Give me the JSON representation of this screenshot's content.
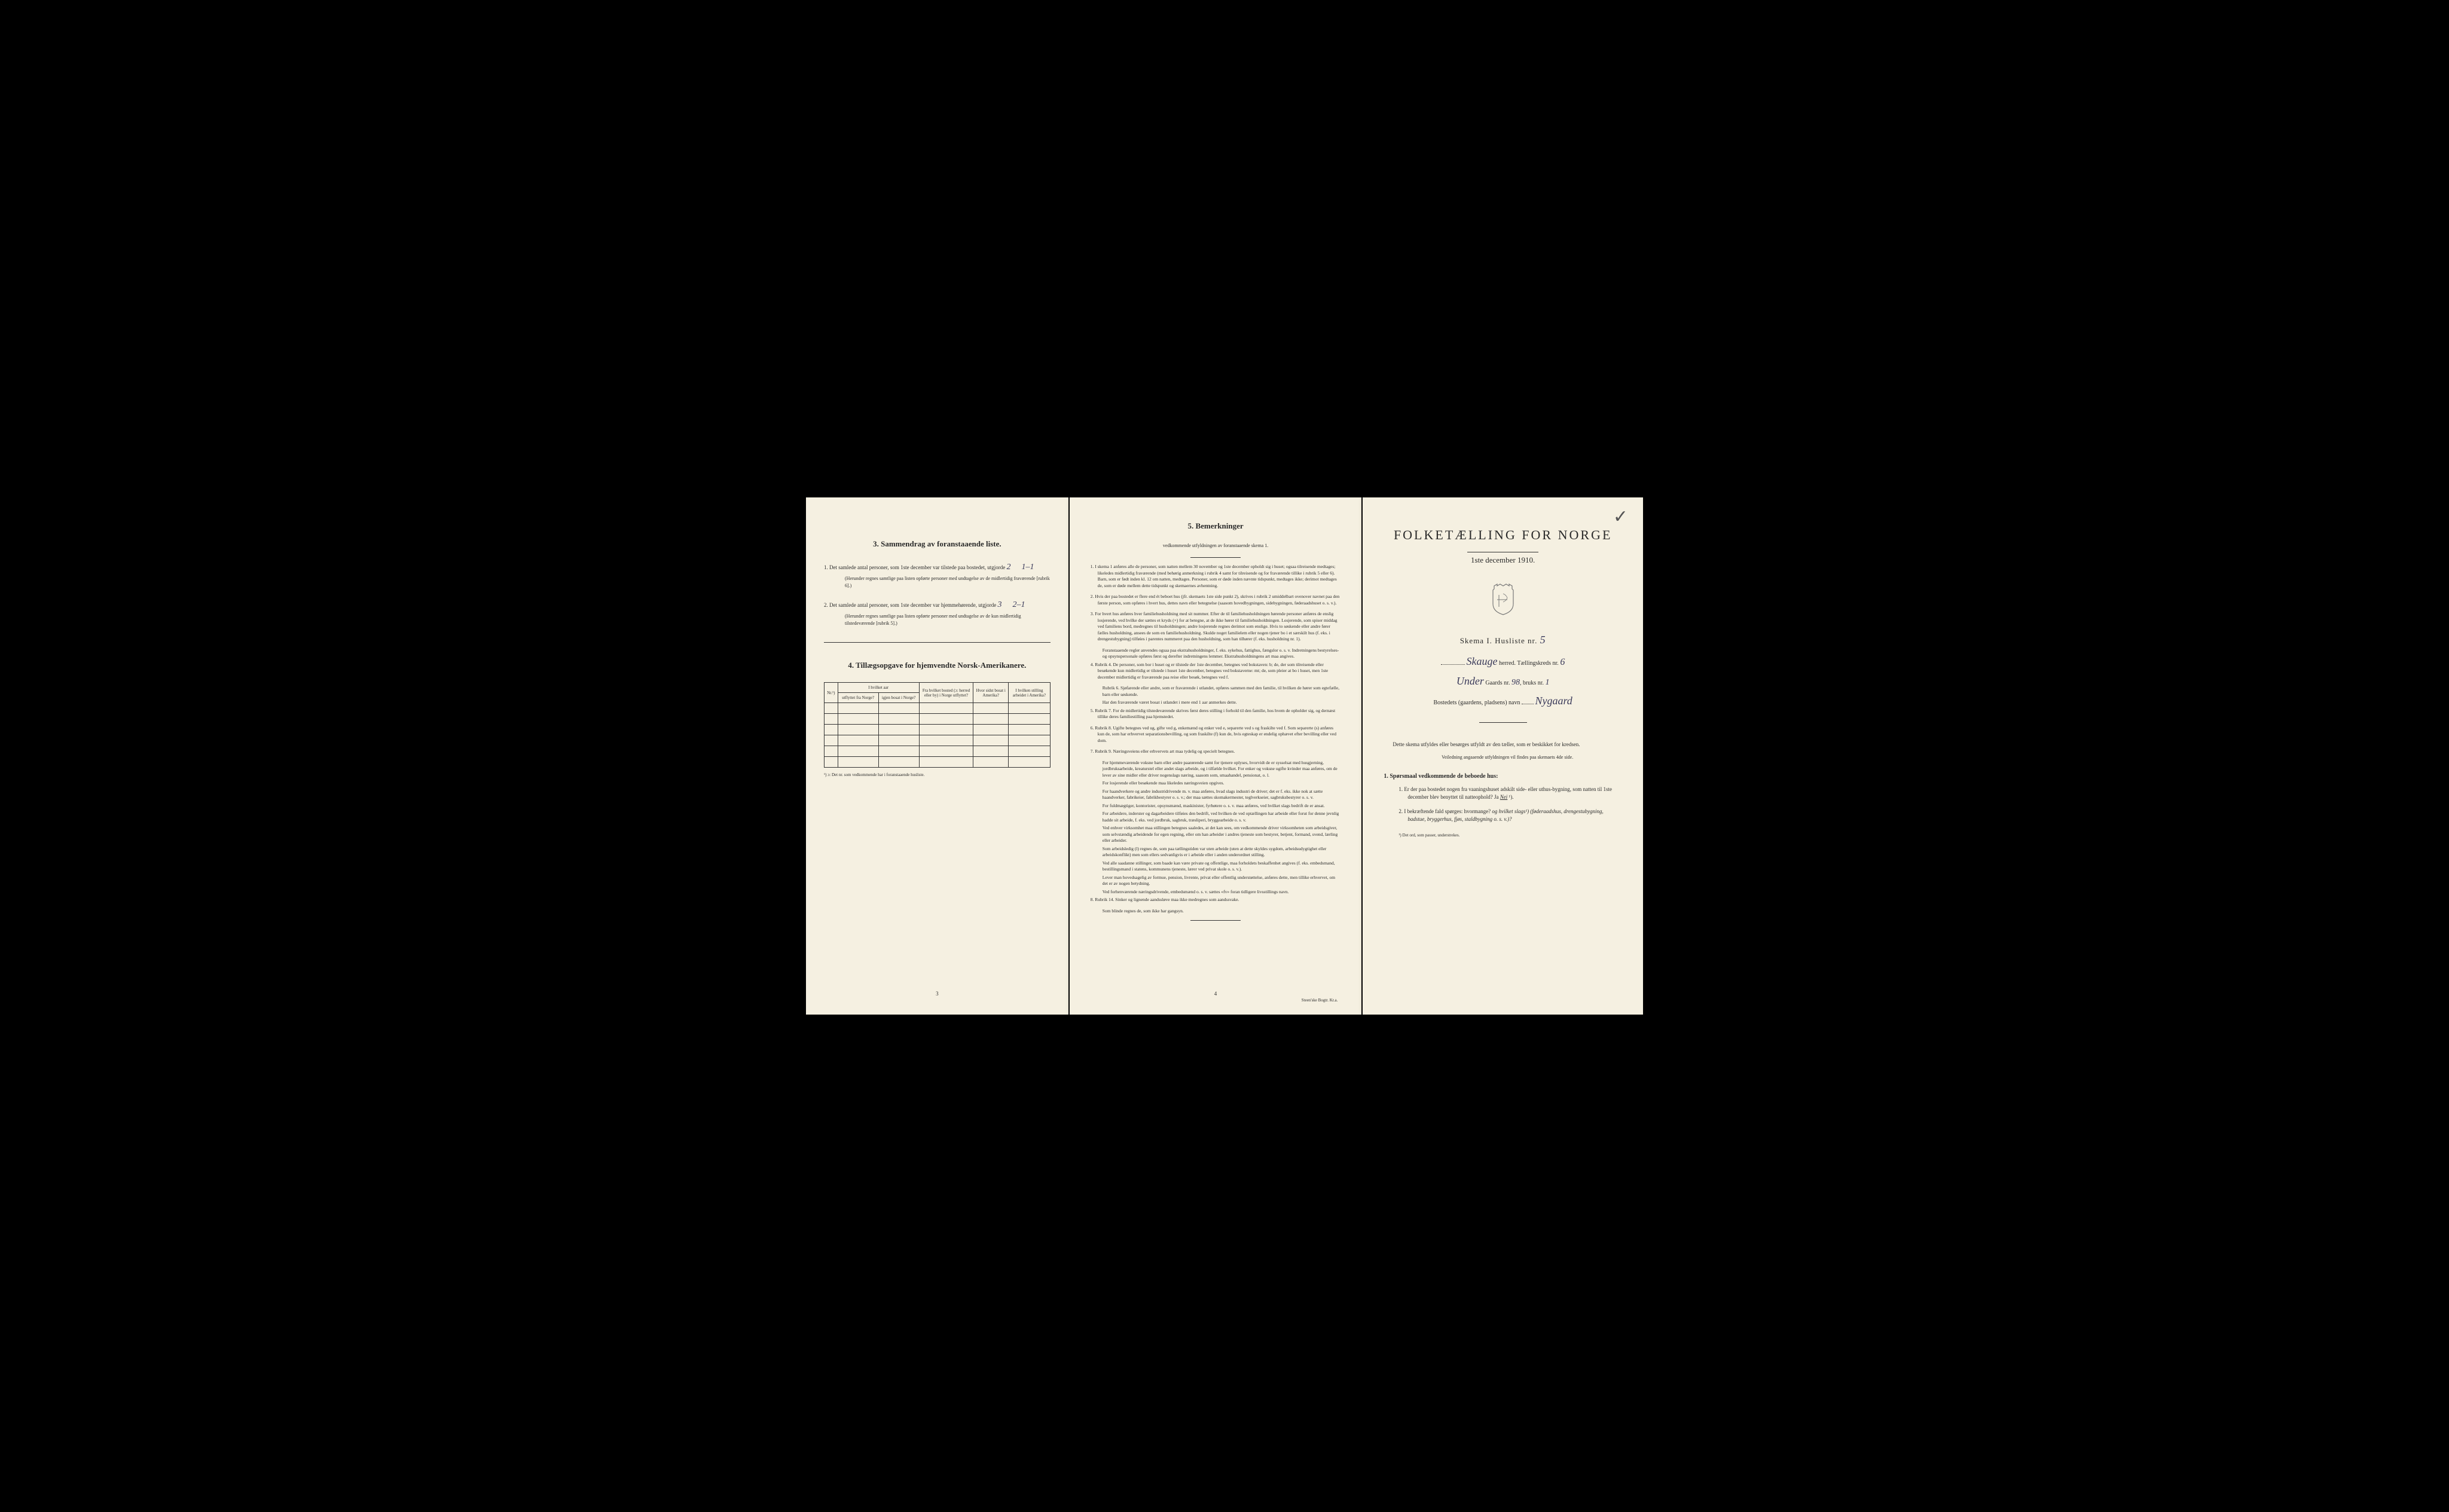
{
  "page_left": {
    "section3_heading": "3.   Sammendrag av foranstaaende liste.",
    "item1_text": "1.  Det samlede antal personer, som 1ste december var tilstede paa bostedet, utgjorde",
    "item1_value": "2",
    "item1_extra": "1–1",
    "item1_note": "(Herunder regnes samtlige paa listen opførte personer med undtagelse av de midlertidig fraværende [rubrik 6].)",
    "item2_text": "2.  Det samlede antal personer, som 1ste december var hjemmehørende, utgjorde",
    "item2_value": "3",
    "item2_extra": "2–1",
    "item2_note": "(Herunder regnes samtlige paa listen opførte personer med undtagelse av de kun midlertidig tilstedeværende [rubrik 5].)",
    "section4_heading": "4.  Tillægsopgave for hjemvendte Norsk-Amerikanere.",
    "table": {
      "col_nr": "Nr.¹)",
      "col_year_header": "I hvilket aar",
      "col_year_out": "utflyttet fra Norge?",
      "col_year_in": "igjen bosat i Norge?",
      "col_from": "Fra hvilket bosted (ɔ: herred eller by) i Norge utflyttet?",
      "col_where": "Hvor sidst bosat i Amerika?",
      "col_position": "I hvilken stilling arbeidet i Amerika?",
      "rows": 6
    },
    "table_footnote": "¹) ɔ: Det nr. som vedkommende har i foranstaaende husliste.",
    "page_number": "3"
  },
  "page_middle": {
    "section5_heading": "5.   Bemerkninger",
    "section5_sub": "vedkommende utfyldningen av foranstaaende skema 1.",
    "remarks": [
      {
        "num": "1.",
        "text": "I skema 1 anføres alle de personer, som natten mellem 30 november og 1ste december opholdt sig i huset; ogsaa tilreisende medtages; likeledes midlertidig fraværende (med behørig anmerkning i rubrik 4 samt for tilreisende og for fraværende tillike i rubrik 5 eller 6). Barn, som er født inden kl. 12 om natten, medtages. Personer, som er døde inden nævnte tidspunkt, medtages ikke; derimot medtages de, som er døde mellem dette tidspunkt og skemaernes avhentning."
      },
      {
        "num": "2.",
        "text": "Hvis der paa bostedet er flere end ét beboet hus (jfr. skemaets 1ste side punkt 2), skrives i rubrik 2 umiddelbart ovenover navnet paa den første person, som opføres i hvert hus, dettes navn eller betegnelse (saasom hovedbygningen, sidebygningen, føderaadshuset o. s. v.)."
      },
      {
        "num": "3.",
        "text": "For hvert hus anføres hver familiehusholdning med sit nummer. Efter de til familiehusholdningen hørende personer anføres de enslig losjerende, ved hvilke der sættes et kryds (×) for at betegne, at de ikke hører til familiehusholdningen. Losjerende, som spiser middag ved familiens bord, medregnes til husholdningen; andre losjerende regnes derimot som enslige. Hvis to søskende eller andre fører fælles husholdning, ansees de som en familiehusholdning. Skulde noget familielem eller nogen tjener bo i et særskilt hus (f. eks. i drengestubygning) tilføies i parentes nummeret paa den husholdning, som han tilhører (f. eks. husholdning nr. 1)."
      },
      {
        "sub": true,
        "text": "Foranstaaende regler anvendes ogsaa paa ekstrahusholdninger, f. eks. sykehus, fattighus, fængslor o. s. v. Indretningens bestyrelses- og opsynspersonale opføres først og derefter indretningens lemmer. Ekstrahusholdningens art maa angives."
      },
      {
        "num": "4.",
        "text": "Rubrik 4. De personer, som bor i huset og er tilstede der 1ste december, betegnes ved bokstaven: b; de, der som tilreisende eller besøkende kun midlertidig er tilstede i huset 1ste december, betegnes ved bokstaverne: mt; de, som pleier at bo i huset, men 1ste december midlertidig er fraværende paa reise eller besøk, betegnes ved f."
      },
      {
        "sub": true,
        "text": "Rubrik 6. Sjøfarende eller andre, som er fraværende i utlandet, opføres sammen med den familie, til hvilken de hører som egtefælle, barn eller søskende."
      },
      {
        "sub": true,
        "text": "Har den fraværende været bosat i utlandet i mere end 1 aar anmerkes dette."
      },
      {
        "num": "5.",
        "text": "Rubrik 7. For de midlertidig tilstedeværende skrives først deres stilling i forhold til den familie, hos hvem de opholder sig, og dernæst tillike deres familiestilling paa hjemstedet."
      },
      {
        "num": "6.",
        "text": "Rubrik 8. Ugifte betegnes ved ug, gifte ved g, enkemænd og enker ved e, separerte ved s og fraskilte ved f. Som separerte (s) anføres kun de, som har erhvervet separationsbevilling, og som fraskilte (f) kun de, hvis egteskap er endelig ophævet efter bevilling eller ved dom."
      },
      {
        "num": "7.",
        "text": "Rubrik 9. Næringsveiens eller erhvervets art maa tydelig og specielt betegnes."
      },
      {
        "sub": true,
        "text": "For hjemmeværende voksne barn eller andre paarørende samt for tjenere oplyses, hvorvidt de er sysselsat med husgjerning, jordbruksarbeide, kreaturstel eller andet slags arbeide, og i tilfælde hvilket. For enker og voksne ugifte kvinder maa anføres, om de lever av sine midler eller driver nogenslags næring, saasom som, smaahandel, pensionat, o. l."
      },
      {
        "sub": true,
        "text": "For losjerende eller besøkende maa likeledes næringsveien opgives."
      },
      {
        "sub": true,
        "text": "For haandverkere og andre industridrivende m. v. maa anføres, hvad slags industri de driver; det er f. eks. ikke nok at sætte haandverker, fabrikeier, fabrikbestyrer o. s. v.; der maa sættes skomakermester, teglverkseier, sagbruksbestyrer o. s. v."
      },
      {
        "sub": true,
        "text": "For fuldmægtiger, kontorister, opsynsmænd, maskinister, fyrbøtere o. s. v. maa anføres, ved hvilket slags bedrift de er ansat."
      },
      {
        "sub": true,
        "text": "For arbeidere, inderster og dagarbeidere tilføies den bedrift, ved hvilken de ved optællingen har arbeide eller forut for denne jevnlig hadde sit arbeide, f. eks. ved jordbruk, sagbruk, træsliperi, bryggearbeide o. s. v."
      },
      {
        "sub": true,
        "text": "Ved enhver virksomhet maa stillingen betegnes saaledes, at det kan sees, om vedkommende driver virksomheten som arbeidsgiver, som selvstændig arbeidende for egen regning, eller om han arbeider i andres tjeneste som bestyrer, betjent, formand, svend, lærling eller arbeider."
      },
      {
        "sub": true,
        "text": "Som arbeidsledig (l) regnes de, som paa tællingstiden var uten arbeide (uten at dette skyldes sygdom, arbeidsudygtighet eller arbeidskonflikt) men som ellers sedvanligvis er i arbeide eller i anden underordnet stilling."
      },
      {
        "sub": true,
        "text": "Ved alle saadanne stillinger, som baade kan være private og offentlige, maa forholdets beskaffenhet angives (f. eks. embedsmand, bestillingsmand i statens, kommunens tjeneste, lærer ved privat skole o. s. v.)."
      },
      {
        "sub": true,
        "text": "Lever man hovedsagelig av formue, pension, livrente, privat eller offentlig understøttelse, anføres dette, men tillike erhvervet, om det er av nogen betydning."
      },
      {
        "sub": true,
        "text": "Ved forhenværende næringsdrivende, embedsmænd o. s. v. sættes «fv» foran tidligere livsstillings navn."
      },
      {
        "num": "8.",
        "text": "Rubrik 14. Sinker og lignende aandssløve maa ikke medregnes som aandssvake."
      },
      {
        "sub": true,
        "text": "Som blinde regnes de, som ikke har gangsyn."
      }
    ],
    "page_number": "4",
    "printer": "Steen'ske Bogtr. Kr.a."
  },
  "page_right": {
    "main_title": "FOLKETÆLLING FOR NORGE",
    "date": "1ste december 1910.",
    "skema_label": "Skema I.   Husliste nr.",
    "husliste_nr": "5",
    "herred_value": "Skauge",
    "herred_label": "herred.  Tællingskreds nr.",
    "kreds_nr": "6",
    "under_value": "Under",
    "gaards_label": "Gaards nr.",
    "gaards_nr": "98",
    "bruks_label": "bruks nr.",
    "bruks_nr": "1",
    "bosted_label": "Bostedets (gaardens, pladsens) navn",
    "bosted_value": "Nygaard",
    "instructions_text": "Dette skema utfyldes eller besørges utfyldt av den tæller, som er beskikket for kredsen.",
    "instructions_sub": "Veiledning angaaende utfyldningen vil findes paa skemaets 4de side.",
    "spor_heading": "1. Spørsmaal vedkommende de beboede hus:",
    "q1": "1.  Er der paa bostedet nogen fra vaaningshuset adskilt side- eller uthus-bygning, som natten til 1ste december blev benyttet til natteophold?   Ja   ",
    "q1_answer": "Nei",
    "q1_suffix": "¹).",
    "q2": "2.  I bekræftende fald spørges: hvormange?",
    "q2_suffix": "og hvilket slags¹) (føderaadshus, drengestubygning, badstue, bryggerhus, fjøs, staldbygning o. s. v.)?",
    "footnote": "¹) Det ord, som passer, understrekes."
  },
  "colors": {
    "paper": "#f5f0e1",
    "text": "#2a2a2a",
    "handwriting": "#3a3a5a",
    "background": "#000000"
  }
}
